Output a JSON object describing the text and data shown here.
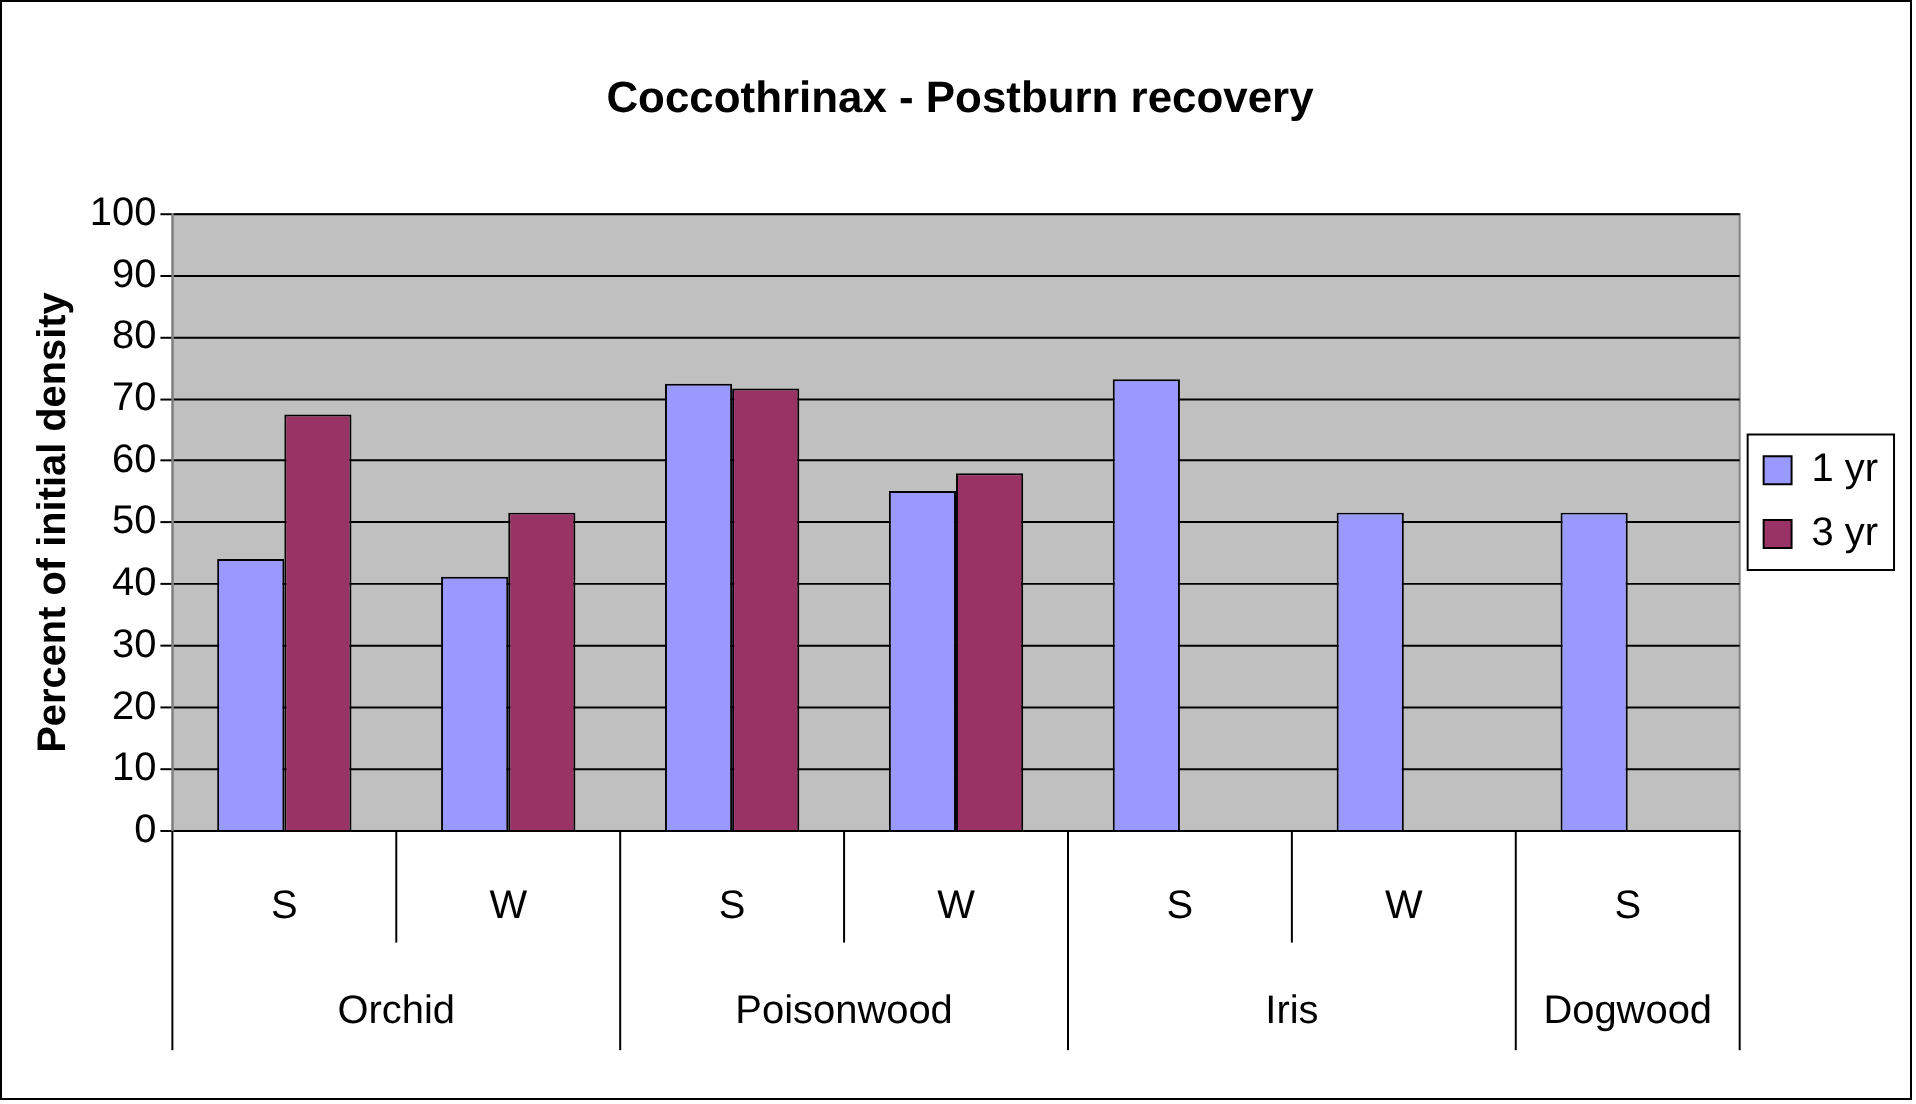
{
  "chart_data": {
    "type": "bar",
    "title": "Coccothrinax - Postburn recovery",
    "ylabel": "Percent of initial density",
    "categories": [
      "S",
      "W",
      "S",
      "W",
      "S",
      "W",
      "S"
    ],
    "annotations": [
      "Orchid",
      "Poisonwood",
      "Iris",
      "Dogwood"
    ],
    "series": [
      {
        "name": "1 yr",
        "color": "#9999ff",
        "values": [
          44.1,
          41.2,
          72.5,
          55.1,
          73.2,
          51.6,
          51.6
        ]
      },
      {
        "name": "3 yr",
        "color": "#993366",
        "values": [
          67.5,
          51.6,
          71.7,
          58.0,
          null,
          null,
          null
        ]
      }
    ],
    "ylim": [
      0,
      100
    ],
    "yticks": [
      0,
      10,
      20,
      30,
      40,
      50,
      60,
      70,
      80,
      90,
      100
    ],
    "grid": "y",
    "legend": "right"
  }
}
